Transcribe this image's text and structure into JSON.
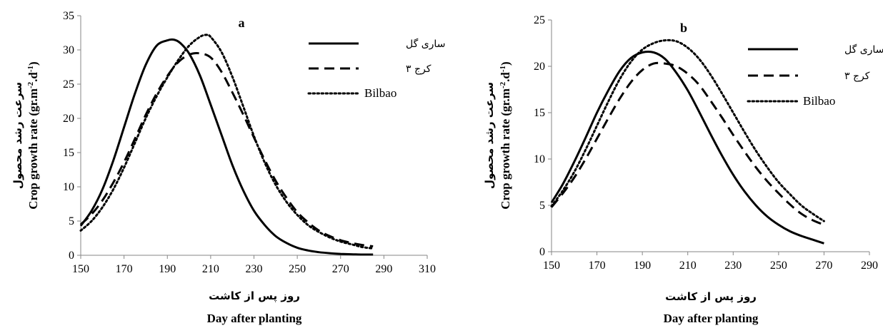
{
  "chart_data": [
    {
      "type": "line",
      "panel_label": "a",
      "xlabel_fa": "روز پس از کاشت",
      "xlabel_en": "Day after planting",
      "ylabel_fa": "سرعت رشد محصول",
      "ylabel_en": "Crop growth rate (gr.m",
      "ylabel_sup1": "-2",
      "ylabel_mid": ".d",
      "ylabel_sup2": "-1",
      "ylabel_end": ")",
      "xlim": [
        150,
        310
      ],
      "ylim": [
        0,
        35
      ],
      "xticks": [
        "150",
        "170",
        "190",
        "210",
        "230",
        "250",
        "270",
        "290",
        "310"
      ],
      "yticks": [
        "0",
        "5",
        "10",
        "15",
        "20",
        "25",
        "30",
        "35"
      ],
      "legend_position": "top-right",
      "series": [
        {
          "name": "ساری گل",
          "style": "solid",
          "color": "#000000",
          "x": [
            150,
            155,
            160,
            165,
            170,
            175,
            180,
            185,
            190,
            193,
            196,
            200,
            205,
            210,
            215,
            220,
            225,
            230,
            235,
            240,
            245,
            250,
            255,
            260,
            265,
            270,
            275,
            280,
            285
          ],
          "y": [
            4.3,
            6.5,
            9.6,
            13.8,
            18.7,
            23.6,
            27.8,
            30.6,
            31.4,
            31.5,
            31.0,
            29.5,
            26.3,
            22.0,
            17.6,
            13.2,
            9.5,
            6.5,
            4.4,
            2.8,
            1.8,
            1.1,
            0.7,
            0.45,
            0.3,
            0.2,
            0.15,
            0.1,
            0.1
          ]
        },
        {
          "name": "کرج ۳",
          "style": "dashed",
          "color": "#000000",
          "x": [
            150,
            155,
            160,
            165,
            170,
            175,
            180,
            185,
            190,
            195,
            200,
            205,
            210,
            215,
            220,
            225,
            230,
            235,
            240,
            245,
            250,
            255,
            260,
            265,
            270,
            275,
            280,
            285
          ],
          "y": [
            4.5,
            6.0,
            8.0,
            10.6,
            13.6,
            17.0,
            20.5,
            23.6,
            26.2,
            28.2,
            29.3,
            29.5,
            28.9,
            26.8,
            23.8,
            20.6,
            17.2,
            13.9,
            10.9,
            8.4,
            6.3,
            4.8,
            3.6,
            2.8,
            2.2,
            1.8,
            1.5,
            1.3
          ]
        },
        {
          "name": "Bilbao",
          "style": "dotted",
          "color": "#000000",
          "x": [
            150,
            155,
            160,
            165,
            170,
            175,
            180,
            185,
            190,
            195,
            200,
            205,
            208,
            210,
            215,
            220,
            225,
            230,
            235,
            240,
            245,
            250,
            255,
            260,
            265,
            270,
            275,
            280,
            285
          ],
          "y": [
            3.6,
            5.0,
            7.0,
            9.6,
            12.8,
            16.4,
            20.0,
            23.2,
            26.0,
            28.5,
            30.6,
            31.9,
            32.2,
            31.9,
            29.7,
            26.1,
            21.8,
            17.4,
            13.5,
            10.3,
            7.8,
            5.9,
            4.4,
            3.4,
            2.6,
            2.0,
            1.6,
            1.2,
            1.0
          ]
        }
      ]
    },
    {
      "type": "line",
      "panel_label": "b",
      "xlabel_fa": "روز پس از کاشت",
      "xlabel_en": "Day after planting",
      "ylabel_fa": "سرعت رشد محصول",
      "ylabel_en": "Crop growth rate (gr.m",
      "ylabel_sup1": "-2",
      "ylabel_mid": ".d",
      "ylabel_sup2": "-1",
      "ylabel_end": ")",
      "xlim": [
        150,
        290
      ],
      "ylim": [
        0,
        25
      ],
      "xticks": [
        "150",
        "170",
        "190",
        "210",
        "230",
        "250",
        "270",
        "290"
      ],
      "yticks": [
        "0",
        "5",
        "10",
        "15",
        "20",
        "25"
      ],
      "legend_position": "top-right",
      "series": [
        {
          "name": "ساری گل",
          "style": "solid",
          "color": "#000000",
          "x": [
            150,
            155,
            160,
            165,
            170,
            175,
            180,
            185,
            190,
            195,
            200,
            205,
            210,
            215,
            220,
            225,
            230,
            235,
            240,
            245,
            250,
            255,
            260,
            265,
            270
          ],
          "y": [
            5.3,
            7.3,
            9.7,
            12.3,
            15.0,
            17.4,
            19.5,
            20.9,
            21.5,
            21.5,
            20.8,
            19.3,
            17.4,
            15.1,
            12.7,
            10.4,
            8.3,
            6.5,
            5.0,
            3.8,
            2.9,
            2.2,
            1.7,
            1.3,
            0.9
          ]
        },
        {
          "name": "کرج ۳",
          "style": "dashed",
          "color": "#000000",
          "x": [
            150,
            155,
            160,
            165,
            170,
            175,
            180,
            185,
            190,
            195,
            200,
            205,
            210,
            215,
            220,
            225,
            230,
            235,
            240,
            245,
            250,
            255,
            260,
            265,
            270
          ],
          "y": [
            4.8,
            6.3,
            8.0,
            10.0,
            12.2,
            14.4,
            16.5,
            18.3,
            19.6,
            20.3,
            20.3,
            20.0,
            19.2,
            18.0,
            16.3,
            14.5,
            12.6,
            10.8,
            9.1,
            7.6,
            6.3,
            5.1,
            4.1,
            3.4,
            2.9
          ]
        },
        {
          "name": "Bilbao",
          "style": "dotted",
          "color": "#000000",
          "x": [
            150,
            155,
            160,
            165,
            170,
            175,
            180,
            185,
            190,
            195,
            200,
            205,
            210,
            215,
            220,
            225,
            230,
            235,
            240,
            245,
            250,
            255,
            260,
            265,
            270
          ],
          "y": [
            4.9,
            6.6,
            8.6,
            11.0,
            13.6,
            16.2,
            18.6,
            20.5,
            21.8,
            22.5,
            22.8,
            22.7,
            22.0,
            20.8,
            19.1,
            17.1,
            15.0,
            12.9,
            10.9,
            9.1,
            7.5,
            6.2,
            5.0,
            4.1,
            3.3
          ]
        }
      ]
    }
  ]
}
